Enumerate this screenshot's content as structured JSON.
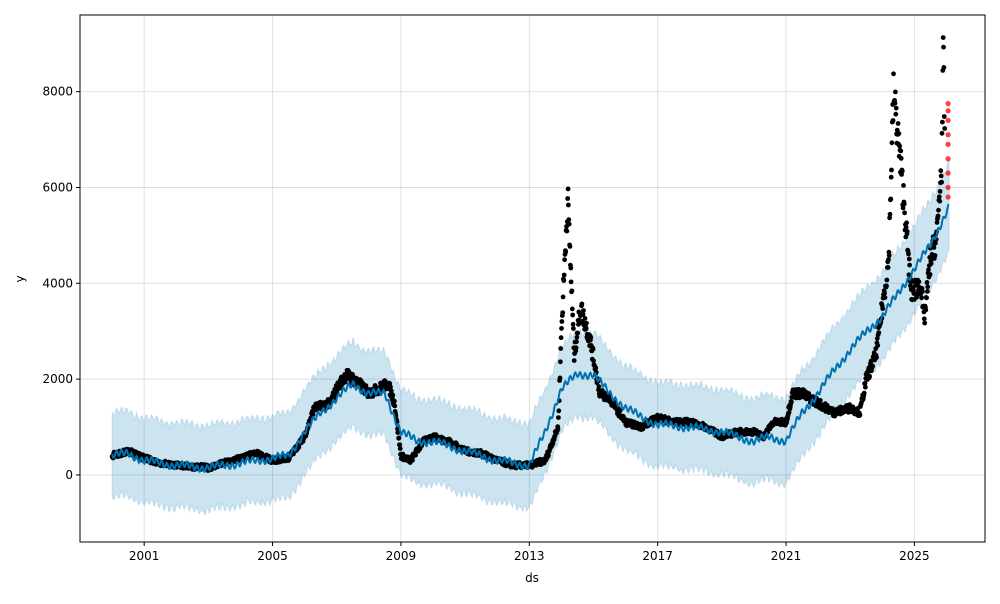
{
  "chart_data": {
    "type": "scatter",
    "title": "",
    "xlabel": "ds",
    "ylabel": "y",
    "xlim": [
      1999,
      2027.2
    ],
    "ylim": [
      -1400,
      9600
    ],
    "xticks": [
      2001,
      2005,
      2009,
      2013,
      2017,
      2021,
      2025
    ],
    "yticks": [
      0,
      2000,
      4000,
      6000,
      8000
    ],
    "grid": true,
    "colors": {
      "observed": "#000000",
      "forecast": "#0072B2",
      "band": "#9ecae1",
      "outlier": "#ff0000"
    },
    "observed": [
      [
        2000.0,
        400
      ],
      [
        2000.5,
        500
      ],
      [
        2001,
        350
      ],
      [
        2001.5,
        250
      ],
      [
        2002,
        200
      ],
      [
        2003,
        150
      ],
      [
        2003.5,
        250
      ],
      [
        2004,
        350
      ],
      [
        2004.5,
        450
      ],
      [
        2005,
        300
      ],
      [
        2005.5,
        350
      ],
      [
        2006,
        800
      ],
      [
        2006.3,
        1400
      ],
      [
        2006.8,
        1500
      ],
      [
        2007,
        1800
      ],
      [
        2007.3,
        2100
      ],
      [
        2007.7,
        1900
      ],
      [
        2008,
        1700
      ],
      [
        2008.3,
        1800
      ],
      [
        2008.6,
        1900
      ],
      [
        2008.8,
        1500
      ],
      [
        2009,
        400
      ],
      [
        2009.3,
        300
      ],
      [
        2009.7,
        700
      ],
      [
        2010,
        800
      ],
      [
        2010.5,
        700
      ],
      [
        2011,
        500
      ],
      [
        2011.5,
        450
      ],
      [
        2012,
        300
      ],
      [
        2012.5,
        200
      ],
      [
        2013,
        200
      ],
      [
        2013.5,
        300
      ],
      [
        2013.9,
        1000
      ],
      [
        2014,
        3000
      ],
      [
        2014.2,
        5800
      ],
      [
        2014.4,
        2500
      ],
      [
        2014.6,
        3500
      ],
      [
        2014.9,
        2800
      ],
      [
        2015.2,
        1700
      ],
      [
        2015.5,
        1600
      ],
      [
        2015.8,
        1300
      ],
      [
        2016,
        1100
      ],
      [
        2016.5,
        1000
      ],
      [
        2017,
        1200
      ],
      [
        2017.5,
        1100
      ],
      [
        2018,
        1100
      ],
      [
        2018.5,
        1000
      ],
      [
        2019,
        800
      ],
      [
        2019.5,
        900
      ],
      [
        2020,
        900
      ],
      [
        2020.3,
        800
      ],
      [
        2020.6,
        1100
      ],
      [
        2021,
        1100
      ],
      [
        2021.2,
        1700
      ],
      [
        2021.5,
        1700
      ],
      [
        2022,
        1500
      ],
      [
        2022.5,
        1300
      ],
      [
        2023,
        1400
      ],
      [
        2023.3,
        1300
      ],
      [
        2023.5,
        2000
      ],
      [
        2023.8,
        2500
      ],
      [
        2024,
        3500
      ],
      [
        2024.2,
        4500
      ],
      [
        2024.35,
        8000
      ],
      [
        2024.5,
        7000
      ],
      [
        2024.7,
        5500
      ],
      [
        2024.9,
        3800
      ],
      [
        2025.2,
        4000
      ],
      [
        2025.3,
        3200
      ],
      [
        2025.5,
        4500
      ],
      [
        2025.7,
        5000
      ],
      [
        2025.85,
        6500
      ],
      [
        2025.9,
        8800
      ],
      [
        2025.95,
        7000
      ]
    ],
    "outliers": [
      [
        2026.05,
        5800
      ],
      [
        2026.05,
        6000
      ],
      [
        2026.05,
        6300
      ],
      [
        2026.05,
        6600
      ],
      [
        2026.05,
        6900
      ],
      [
        2026.05,
        7100
      ],
      [
        2026.05,
        7400
      ],
      [
        2026.05,
        7600
      ],
      [
        2026.05,
        7750
      ]
    ],
    "forecast": [
      [
        2000.0,
        400
      ],
      [
        2000.5,
        450
      ],
      [
        2001,
        300
      ],
      [
        2002,
        200
      ],
      [
        2003,
        150
      ],
      [
        2004,
        250
      ],
      [
        2005,
        350
      ],
      [
        2005.5,
        400
      ],
      [
        2006,
        900
      ],
      [
        2006.5,
        1300
      ],
      [
        2007,
        1600
      ],
      [
        2007.5,
        1900
      ],
      [
        2008,
        1700
      ],
      [
        2008.5,
        1700
      ],
      [
        2009,
        900
      ],
      [
        2009.5,
        700
      ],
      [
        2010,
        700
      ],
      [
        2010.5,
        600
      ],
      [
        2011,
        500
      ],
      [
        2012,
        300
      ],
      [
        2013,
        200
      ],
      [
        2013.5,
        900
      ],
      [
        2014,
        1800
      ],
      [
        2014.5,
        2100
      ],
      [
        2015,
        2100
      ],
      [
        2015.5,
        1700
      ],
      [
        2016,
        1400
      ],
      [
        2016.5,
        1200
      ],
      [
        2017,
        1050
      ],
      [
        2018,
        1000
      ],
      [
        2019,
        900
      ],
      [
        2020,
        700
      ],
      [
        2020.5,
        800
      ],
      [
        2021,
        700
      ],
      [
        2021.5,
        1300
      ],
      [
        2022,
        1700
      ],
      [
        2022.5,
        2200
      ],
      [
        2023,
        2600
      ],
      [
        2023.5,
        3000
      ],
      [
        2024,
        3300
      ],
      [
        2024.5,
        3800
      ],
      [
        2025,
        4300
      ],
      [
        2025.5,
        4800
      ],
      [
        2026.08,
        5600
      ]
    ],
    "band_halfwidth": [
      [
        2000,
        850
      ],
      [
        2020,
        850
      ],
      [
        2026.08,
        900
      ]
    ]
  }
}
